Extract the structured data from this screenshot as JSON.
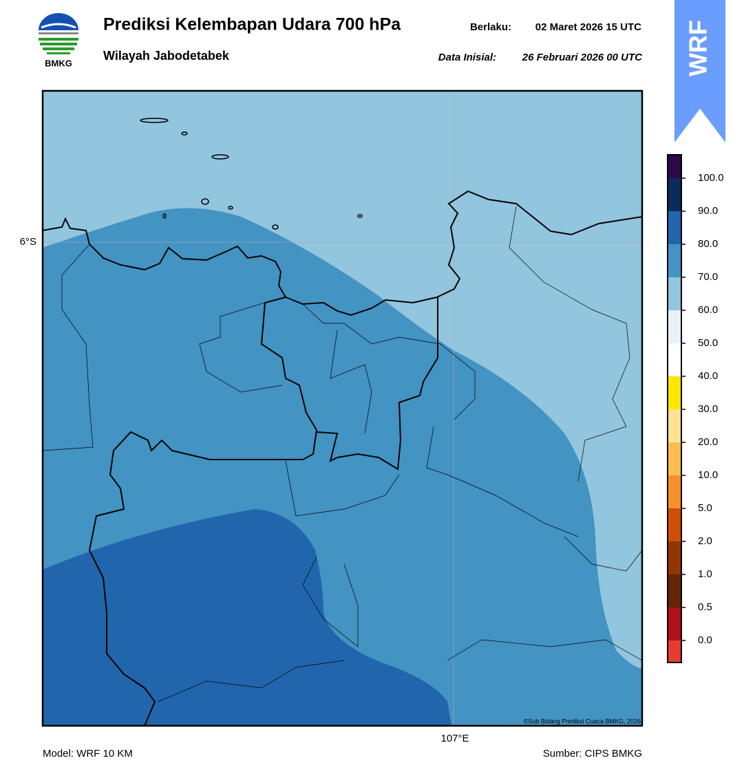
{
  "header": {
    "title": "Prediksi Kelembapan Udara 700 hPa",
    "subtitle": "Wilayah Jabodetabek",
    "valid_label": "Berlaku:",
    "valid_time": "02 Maret 2026 15 UTC",
    "init_label": "Data Inisial:",
    "init_time": "26 Februari 2026 00 UTC"
  },
  "logo": {
    "text": "BMKG"
  },
  "badge": {
    "text": "WRF",
    "color": "#6b9dff"
  },
  "map": {
    "lat_label": "6°S",
    "lon_label": "107°E",
    "credit": "©Sub Bidang Prediksi Cuaca BMKG, 2026"
  },
  "colorbar": {
    "colors": [
      "#e63b2e",
      "#b0111b",
      "#652506",
      "#923604",
      "#cf4e08",
      "#f7922a",
      "#fdbd50",
      "#fee292",
      "#ffe600",
      "#ffffff",
      "#e9f1f8",
      "#92c5de",
      "#4393c3",
      "#2166ac",
      "#0b2c5a",
      "#2c0a48"
    ],
    "ticks": [
      {
        "value": 0,
        "label": "0.0"
      },
      {
        "value": 0.5,
        "label": "0.5"
      },
      {
        "value": 1,
        "label": "1.0"
      },
      {
        "value": 2,
        "label": "2.0"
      },
      {
        "value": 5,
        "label": "5.0"
      },
      {
        "value": 10,
        "label": "10.0"
      },
      {
        "value": 20,
        "label": "20.0"
      },
      {
        "value": 30,
        "label": "30.0"
      },
      {
        "value": 40,
        "label": "40.0"
      },
      {
        "value": 50,
        "label": "50.0"
      },
      {
        "value": 60,
        "label": "60.0"
      },
      {
        "value": 70,
        "label": "70.0"
      },
      {
        "value": 80,
        "label": "80.0"
      },
      {
        "value": 90,
        "label": "90.0"
      },
      {
        "value": 100,
        "label": "100.0"
      }
    ]
  },
  "footer": {
    "model": "Model: WRF 10 KM",
    "source": "Sumber: CIPS BMKG"
  }
}
